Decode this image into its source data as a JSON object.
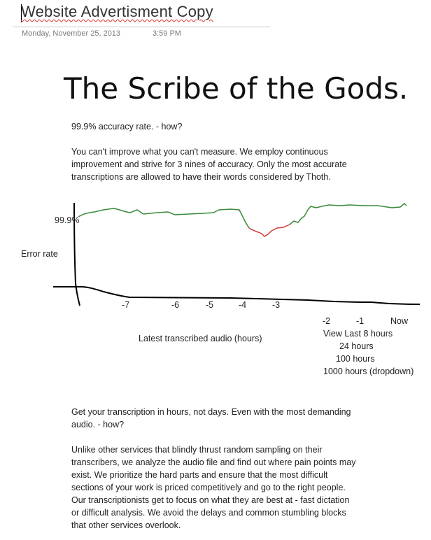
{
  "page": {
    "title": "Website Advertisment Copy",
    "date": "Monday, November 25, 2013",
    "time": "3:59 PM"
  },
  "headline": "The Scribe of the Gods.",
  "section1": {
    "question": "99.9% accuracy rate. - how?",
    "lines": [
      "You can't improve what you can't measure. We employ continuous",
      "improvement and strive for 3 nines of accuracy. Only the most accurate",
      "transcriptions are allowed to have their words considered by Thoth."
    ]
  },
  "sketch": {
    "y_tick_label": "99.9%",
    "y_axis_label": "Error rate",
    "x_axis_label": "Latest transcribed audio (hours)",
    "x_tick_labels": [
      "-7",
      "-6",
      "-5",
      "-4",
      "-3",
      "-2",
      "-1",
      "Now"
    ],
    "range_options": [
      "View Last 8 hours",
      "24 hours",
      "100 hours",
      "1000 hours (dropdown)"
    ],
    "colors": {
      "good": "#3a8a3a",
      "bad": "#d23a3a",
      "axis": "#000000"
    }
  },
  "section2": {
    "question_lines": [
      "Get your transcription in hours, not days. Even with the most demanding",
      "audio. - how?"
    ],
    "lines": [
      "Unlike other services that blindly thrust random sampling on their",
      "transcribers, we analyze the audio file and find out where pain points may",
      "exist. We prioritize the hard parts and ensure that the most difficult",
      "sections of your work is priced competitively and go to the right people.",
      "Our transcriptionists get to focus on what they are best at - fast dictation",
      "or difficult analysis. We avoid the delays and common stumbling blocks",
      "that other services overlook."
    ]
  }
}
